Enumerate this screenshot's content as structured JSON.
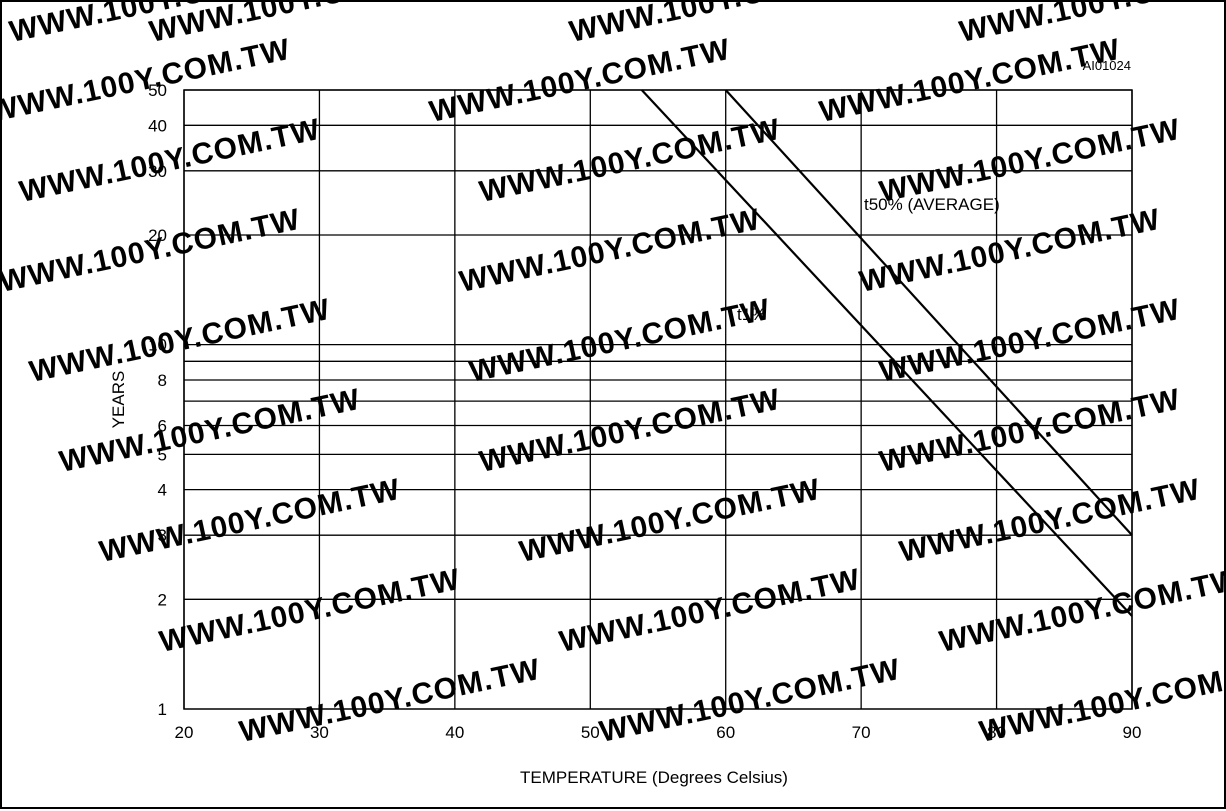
{
  "chart_data": {
    "type": "line",
    "code_label": "AI01024",
    "xlabel": "TEMPERATURE (Degrees Celsius)",
    "ylabel": "YEARS",
    "xlim": [
      20,
      90
    ],
    "ylim": [
      1,
      50
    ],
    "y_scale": "log",
    "grid": true,
    "x_ticks": [
      20,
      30,
      40,
      50,
      60,
      70,
      80,
      90
    ],
    "y_ticks": [
      1,
      2,
      3,
      4,
      5,
      6,
      8,
      10,
      20,
      30,
      40,
      50
    ],
    "y_gridlines": [
      2,
      3,
      4,
      5,
      6,
      7,
      8,
      9,
      10,
      20,
      30,
      40,
      50
    ],
    "series": [
      {
        "name": "t1%",
        "x": [
          53.8,
          90
        ],
        "y": [
          50,
          1.8
        ]
      },
      {
        "name": "t50% (AVERAGE)",
        "x": [
          60,
          90
        ],
        "y": [
          50,
          3
        ]
      }
    ]
  },
  "watermark": "WWW.100Y.COM.TW",
  "colors": {
    "line": "#000000",
    "grid": "#000000",
    "watermark": "#d7d7d7"
  }
}
